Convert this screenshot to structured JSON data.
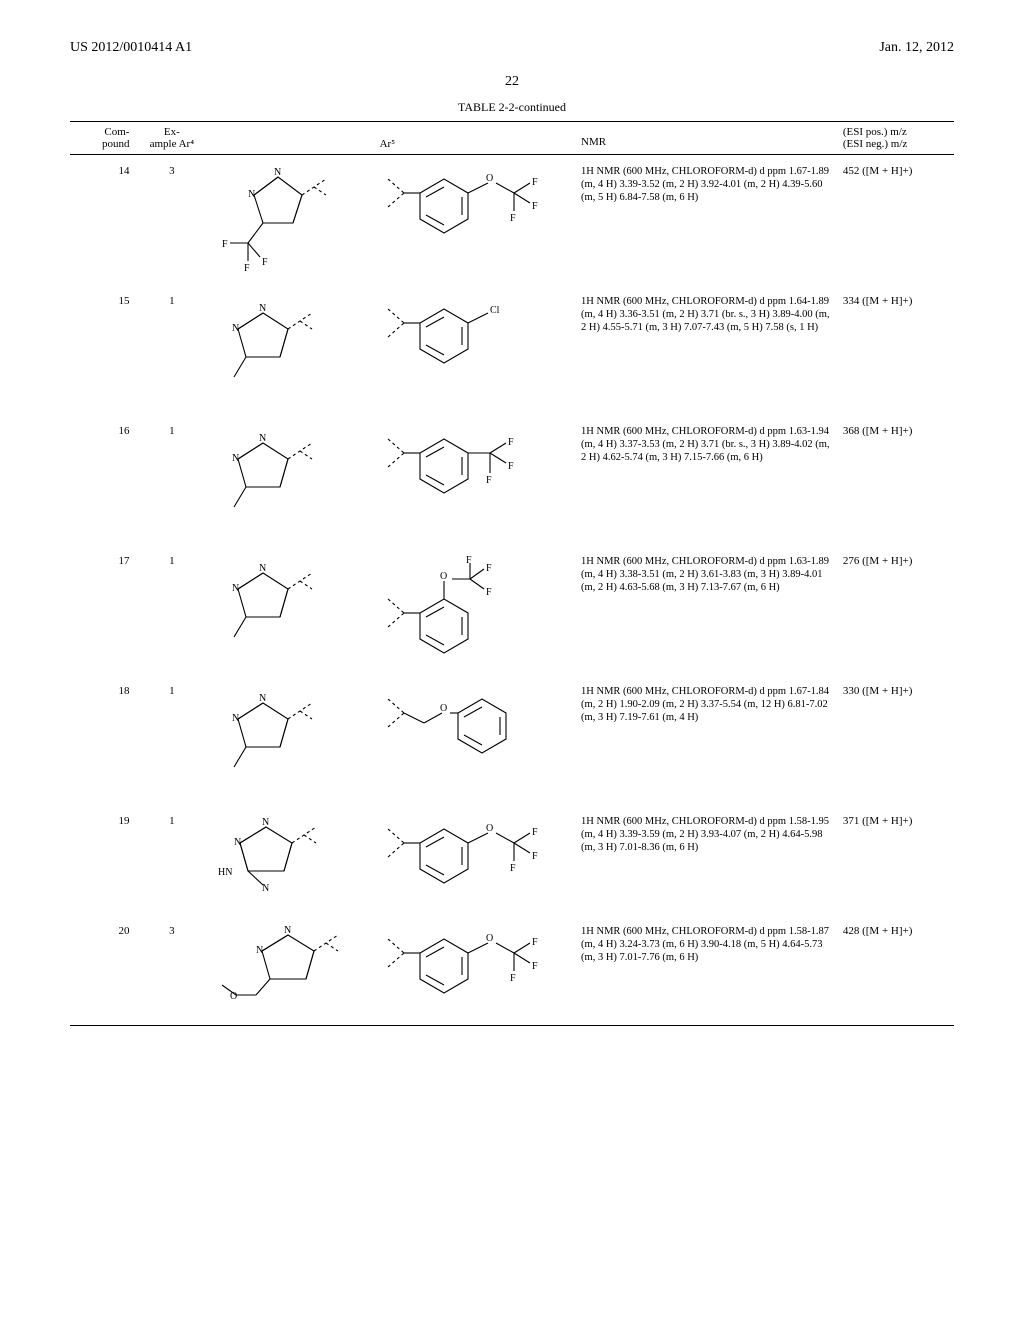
{
  "header": {
    "left": "US 2012/0010414 A1",
    "right": "Jan. 12, 2012"
  },
  "page_number": "22",
  "table": {
    "caption": "TABLE 2-2-continued",
    "columns": {
      "compound": "Com-\npound",
      "example": "Ex-\nample Ar⁴",
      "ar5": "Ar⁵",
      "nmr": "NMR",
      "ms": "(ESI pos.) m/z\n(ESI neg.) m/z"
    },
    "rows": [
      {
        "compound": "14",
        "example": "3",
        "ar4_label": "trifluoromethyl-imidazole",
        "ar5_label": "meta-trifluoromethoxy-phenyl",
        "nmr": "1H NMR (600 MHz, CHLOROFORM-d) d ppm 1.67-1.89 (m, 4 H) 3.39-3.52 (m, 2 H) 3.92-4.01 (m, 2 H) 4.39-5.60 (m, 5 H) 6.84-7.58 (m, 6 H)",
        "ms": "452 ([M + H]+)"
      },
      {
        "compound": "15",
        "example": "1",
        "ar4_label": "N-methyl-imidazole",
        "ar5_label": "meta-chloro-phenyl",
        "nmr": "1H NMR (600 MHz, CHLOROFORM-d) d ppm 1.64-1.89 (m, 4 H) 3.36-3.51 (m, 2 H) 3.71 (br. s., 3 H) 3.89-4.00 (m, 2 H) 4.55-5.71 (m, 3 H) 7.07-7.43 (m, 5 H) 7.58 (s, 1 H)",
        "ms": "334 ([M + H]+)"
      },
      {
        "compound": "16",
        "example": "1",
        "ar4_label": "N-methyl-imidazole",
        "ar5_label": "meta-trifluoromethyl-phenyl",
        "nmr": "1H NMR (600 MHz, CHLOROFORM-d) d ppm 1.63-1.94 (m, 4 H) 3.37-3.53 (m, 2 H) 3.71 (br. s., 3 H) 3.89-4.02 (m, 2 H) 4.62-5.74 (m, 3 H) 7.15-7.66 (m, 6 H)",
        "ms": "368 ([M + H]+)"
      },
      {
        "compound": "17",
        "example": "1",
        "ar4_label": "N-methyl-imidazole",
        "ar5_label": "ortho-trifluoromethoxy-phenyl",
        "nmr": "1H NMR (600 MHz, CHLOROFORM-d) d ppm 1.63-1.89 (m, 4 H) 3.38-3.51 (m, 2 H) 3.61-3.83 (m, 3 H) 3.89-4.01 (m, 2 H) 4.63-5.68 (m, 3 H) 7.13-7.67 (m, 6 H)",
        "ms": "276 ([M + H]+)"
      },
      {
        "compound": "18",
        "example": "1",
        "ar4_label": "N-methyl-imidazole",
        "ar5_label": "CH2-O-phenyl",
        "nmr": "1H NMR (600 MHz, CHLOROFORM-d) d ppm 1.67-1.84 (m, 2 H) 1.90-2.09 (m, 2 H) 3.37-5.54 (m, 12 H) 6.81-7.02 (m, 3 H) 7.19-7.61 (m, 4 H)",
        "ms": "330 ([M + H]+)"
      },
      {
        "compound": "19",
        "example": "1",
        "ar4_label": "triazole",
        "ar5_label": "meta-trifluoromethoxy-phenyl",
        "nmr": "1H NMR (600 MHz, CHLOROFORM-d) d ppm 1.58-1.95 (m, 4 H) 3.39-3.59 (m, 2 H) 3.93-4.07 (m, 2 H) 4.64-5.98 (m, 3 H) 7.01-8.36 (m, 6 H)",
        "ms": "371 ([M + H]+)"
      },
      {
        "compound": "20",
        "example": "3",
        "ar4_label": "N-methoxyethyl-imidazole",
        "ar5_label": "meta-trifluoromethoxy-phenyl",
        "nmr": "1H NMR (600 MHz, CHLOROFORM-d) d ppm 1.58-1.87 (m, 4 H) 3.24-3.73 (m, 6 H) 3.90-4.18 (m, 5 H) 4.64-5.73 (m, 3 H) 7.01-7.76 (m, 6 H)",
        "ms": "428 ([M + H]+)"
      }
    ]
  },
  "svg": {
    "stroke": "#000000",
    "stroke_width": 1.1,
    "font_size": 10
  }
}
